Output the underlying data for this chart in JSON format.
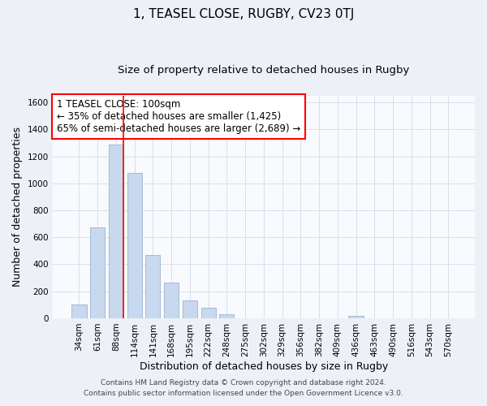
{
  "title": "1, TEASEL CLOSE, RUGBY, CV23 0TJ",
  "subtitle": "Size of property relative to detached houses in Rugby",
  "xlabel": "Distribution of detached houses by size in Rugby",
  "ylabel": "Number of detached properties",
  "bar_labels": [
    "34sqm",
    "61sqm",
    "88sqm",
    "114sqm",
    "141sqm",
    "168sqm",
    "195sqm",
    "222sqm",
    "248sqm",
    "275sqm",
    "302sqm",
    "329sqm",
    "356sqm",
    "382sqm",
    "409sqm",
    "436sqm",
    "463sqm",
    "490sqm",
    "516sqm",
    "543sqm",
    "570sqm"
  ],
  "bar_values": [
    100,
    675,
    1290,
    1075,
    470,
    265,
    130,
    75,
    30,
    0,
    0,
    0,
    0,
    0,
    0,
    15,
    0,
    0,
    0,
    0,
    0
  ],
  "bar_color": "#c8d8ee",
  "bar_edge_color": "#9ab4d0",
  "vline_x_index": 2,
  "vline_color": "red",
  "annotation_text": "1 TEASEL CLOSE: 100sqm\n← 35% of detached houses are smaller (1,425)\n65% of semi-detached houses are larger (2,689) →",
  "annotation_box_color": "white",
  "annotation_box_edge_color": "red",
  "ylim": [
    0,
    1650
  ],
  "yticks": [
    0,
    200,
    400,
    600,
    800,
    1000,
    1200,
    1400,
    1600
  ],
  "footer1": "Contains HM Land Registry data © Crown copyright and database right 2024.",
  "footer2": "Contains public sector information licensed under the Open Government Licence v3.0.",
  "background_color": "#edf1f7",
  "plot_background_color": "#f8fafd",
  "title_fontsize": 11,
  "subtitle_fontsize": 9.5,
  "axis_label_fontsize": 9,
  "tick_fontsize": 7.5,
  "annotation_fontsize": 8.5,
  "footer_fontsize": 6.5,
  "grid_color": "#d4dce8"
}
